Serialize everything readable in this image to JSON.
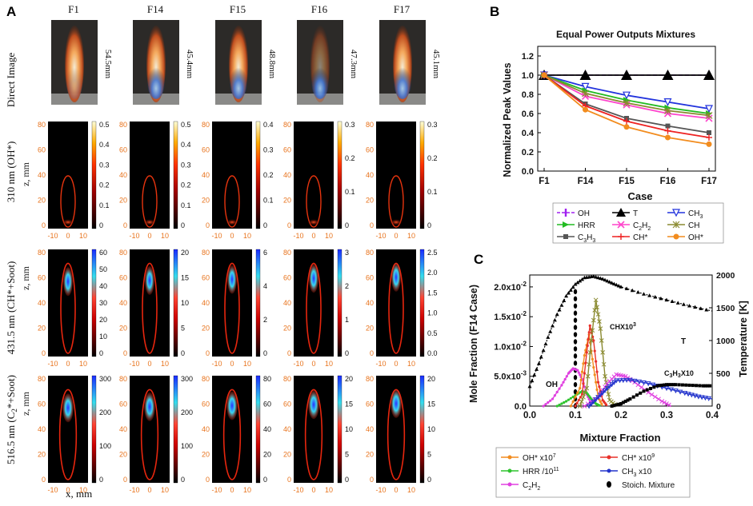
{
  "panelA": {
    "letter": "A",
    "columns": [
      {
        "label": "F1",
        "height": "54.5mm",
        "oh_ticks": [
          "0.5",
          "0.4",
          "0.3",
          "0.2",
          "0.1",
          "0"
        ],
        "ch_ticks": [
          "60",
          "50",
          "40",
          "30",
          "20",
          "10",
          "0"
        ],
        "c2_ticks": [
          "300",
          "200",
          "100",
          "0"
        ]
      },
      {
        "label": "F14",
        "height": "45.4mm",
        "oh_ticks": [
          "0.5",
          "0.4",
          "0.3",
          "0.2",
          "0.1",
          "0"
        ],
        "ch_ticks": [
          "20",
          "15",
          "10",
          "5",
          "0"
        ],
        "c2_ticks": [
          "300",
          "200",
          "100",
          "0"
        ]
      },
      {
        "label": "F15",
        "height": "48.8mm",
        "oh_ticks": [
          "0.4",
          "0.3",
          "0.2",
          "0.1",
          "0"
        ],
        "ch_ticks": [
          "6",
          "4",
          "2",
          "0"
        ],
        "c2_ticks": [
          "80",
          "60",
          "40",
          "20",
          "0"
        ]
      },
      {
        "label": "F16",
        "height": "47.3mm",
        "oh_ticks": [
          "0.3",
          "0.2",
          "0.1",
          "0"
        ],
        "ch_ticks": [
          "3",
          "2",
          "1",
          "0"
        ],
        "c2_ticks": [
          "20",
          "15",
          "10",
          "5",
          "0"
        ]
      },
      {
        "label": "F17",
        "height": "45.1mm",
        "oh_ticks": [
          "0.3",
          "0.2",
          "0.1",
          "0"
        ],
        "ch_ticks": [
          "2.5",
          "2.0",
          "1.5",
          "1.0",
          "0.5",
          "0.0"
        ],
        "c2_ticks": [
          "20",
          "15",
          "10",
          "5",
          "0"
        ]
      }
    ],
    "row_labels": [
      "Direct Image",
      "310 nm (OH*)",
      "431.5 nm (CH*+Soot)",
      "516.5 nm (C",
      "*+Soot)"
    ],
    "row_label_sub": "2",
    "z_label": "z, mm",
    "z_ticks": [
      "80",
      "60",
      "40",
      "20",
      "0"
    ],
    "x_ticks": [
      "-10",
      "0",
      "10"
    ],
    "x_label": "x, mm"
  },
  "panelB": {
    "letter": "B",
    "title": "Equal Power Outputs Mixtures",
    "ylabel": "Normalized Peak Values",
    "xlabel": "Case",
    "legend": [
      "OH",
      "T",
      "CH3",
      "HRR",
      "C2H2",
      "CH",
      "C3H3",
      "CH*",
      "OH*"
    ]
  },
  "panelC": {
    "letter": "C",
    "ylabel": "Mole Fraction (F14 Case)",
    "ylabel2": "Temperature [K]",
    "xlabel": "Mixture Fraction",
    "annotations": {
      "T": "T",
      "chx": "CHX10",
      "chx_exp": "3",
      "oh": "OH",
      "c3h3_a": "C",
      "c3h3_b": "3",
      "c3h3_c": "H",
      "c3h3_d": "3",
      "c3h3_e": "X10"
    },
    "legend": [
      {
        "key": "ohstar",
        "label": "OH* x10",
        "exp": "7",
        "color": "#f28c1e"
      },
      {
        "key": "chstar",
        "label": "CH* x10",
        "exp": "9",
        "color": "#e8322a"
      },
      {
        "key": "hrr",
        "label": "HRR /10",
        "exp": "11",
        "color": "#2fc42f"
      },
      {
        "key": "ch3",
        "label": "CH",
        "sub": "3",
        "tail": " x10",
        "color": "#2233cc"
      },
      {
        "key": "c2h2",
        "label": "C",
        "sub": "2",
        "mid": "H",
        "sub2": "2",
        "color": "#e040e0"
      },
      {
        "key": "stoich",
        "label": "Stoich. Mixture",
        "color": "#000000"
      }
    ]
  },
  "chart_data": [
    {
      "type": "line",
      "title": "Equal Power Outputs Mixtures",
      "xlabel": "Case",
      "ylabel": "Normalized Peak Values",
      "categories": [
        "F1",
        "F14",
        "F15",
        "F16",
        "F17"
      ],
      "yticks": [
        "0.0",
        "0.2",
        "0.4",
        "0.6",
        "0.8",
        "1.0",
        "1.2"
      ],
      "ylim": [
        0,
        1.3
      ],
      "series": [
        {
          "name": "OH",
          "color": "#a020f0",
          "values": [
            1.0,
            1.0,
            1.0,
            1.0,
            1.0
          ]
        },
        {
          "name": "T",
          "color": "#000000",
          "values": [
            1.0,
            1.0,
            1.0,
            1.0,
            1.0
          ]
        },
        {
          "name": "CH3",
          "color": "#2233dd",
          "values": [
            1.0,
            0.88,
            0.79,
            0.72,
            0.65
          ]
        },
        {
          "name": "HRR",
          "color": "#22bb22",
          "values": [
            1.0,
            0.84,
            0.74,
            0.66,
            0.6
          ]
        },
        {
          "name": "C2H2",
          "color": "#ff44cc",
          "values": [
            1.0,
            0.78,
            0.69,
            0.6,
            0.55
          ]
        },
        {
          "name": "CH",
          "color": "#8a8a30",
          "values": [
            1.0,
            0.81,
            0.71,
            0.63,
            0.58
          ]
        },
        {
          "name": "C3H3",
          "color": "#555555",
          "values": [
            1.0,
            0.7,
            0.55,
            0.47,
            0.4
          ]
        },
        {
          "name": "CH*",
          "color": "#ee2222",
          "values": [
            1.0,
            0.68,
            0.52,
            0.42,
            0.35
          ]
        },
        {
          "name": "OH*",
          "color": "#f28c1e",
          "values": [
            1.0,
            0.64,
            0.46,
            0.35,
            0.28
          ]
        }
      ]
    },
    {
      "type": "line",
      "xlabel": "Mixture Fraction",
      "ylabel": "Mole Fraction (F14 Case)",
      "y2label": "Temperature [K]",
      "xlim": [
        0,
        0.4
      ],
      "ylim": [
        0,
        0.022
      ],
      "y2lim": [
        0,
        2000
      ],
      "xticks": [
        "0.0",
        "0.1",
        "0.2",
        "0.3",
        "0.4"
      ],
      "yticks": [
        "0.0",
        "5.0x10-3",
        "1.0x10-2",
        "1.5x10-2",
        "2.0x10-2"
      ],
      "y2ticks": [
        "0",
        "500",
        "1000",
        "1500",
        "2000"
      ],
      "stoich_x": 0.1,
      "series": [
        {
          "name": "T",
          "axis": "right",
          "color": "#000000",
          "x": [
            0,
            0.02,
            0.04,
            0.06,
            0.08,
            0.1,
            0.12,
            0.14,
            0.16,
            0.18,
            0.2,
            0.25,
            0.3,
            0.35,
            0.4
          ],
          "values": [
            300,
            650,
            1050,
            1400,
            1680,
            1860,
            1960,
            1980,
            1940,
            1880,
            1820,
            1710,
            1620,
            1530,
            1450
          ]
        },
        {
          "name": "OH",
          "color": "#e040e0",
          "x": [
            0.03,
            0.05,
            0.07,
            0.085,
            0.095,
            0.105,
            0.115,
            0.125,
            0.135
          ],
          "values": [
            0.0,
            0.0012,
            0.0035,
            0.0055,
            0.0063,
            0.006,
            0.0045,
            0.002,
            0.0003
          ]
        },
        {
          "name": "HRR",
          "color": "#2fc42f",
          "x": [
            0.06,
            0.08,
            0.1,
            0.115,
            0.125,
            0.135,
            0.145,
            0.155
          ],
          "values": [
            0.0,
            0.0008,
            0.0018,
            0.0025,
            0.0022,
            0.0012,
            0.0004,
            0.0
          ]
        },
        {
          "name": "OH*",
          "color": "#f28c1e",
          "x": [
            0.09,
            0.11,
            0.12,
            0.13,
            0.14,
            0.15,
            0.16
          ],
          "values": [
            0.0,
            0.003,
            0.0085,
            0.012,
            0.0065,
            0.0015,
            0.0
          ]
        },
        {
          "name": "CH*",
          "color": "#e8322a",
          "x": [
            0.1,
            0.115,
            0.125,
            0.132,
            0.14,
            0.15,
            0.16,
            0.17
          ],
          "values": [
            0.0,
            0.002,
            0.009,
            0.0135,
            0.011,
            0.004,
            0.001,
            0.0
          ]
        },
        {
          "name": "CHX10^3",
          "color": "#8a8a30",
          "x": [
            0.11,
            0.125,
            0.135,
            0.145,
            0.155,
            0.165,
            0.175,
            0.19
          ],
          "values": [
            0.0,
            0.003,
            0.011,
            0.0178,
            0.013,
            0.005,
            0.001,
            0.0
          ]
        },
        {
          "name": "C2H2",
          "color": "#e040e0",
          "x": [
            0.12,
            0.15,
            0.17,
            0.19,
            0.21,
            0.23,
            0.26,
            0.29,
            0.31
          ],
          "values": [
            0.0,
            0.0015,
            0.0038,
            0.0053,
            0.005,
            0.004,
            0.0023,
            0.0008,
            0.0
          ]
        },
        {
          "name": "CH3 x10",
          "color": "#2233cc",
          "x": [
            0.13,
            0.15,
            0.17,
            0.19,
            0.22,
            0.26,
            0.3,
            0.34,
            0.37,
            0.4
          ],
          "values": [
            0.0,
            0.0015,
            0.003,
            0.0043,
            0.0044,
            0.0038,
            0.003,
            0.0022,
            0.0016,
            0.0012
          ]
        },
        {
          "name": "C3H3X10",
          "color": "#000000",
          "x": [
            0.18,
            0.2,
            0.22,
            0.25,
            0.28,
            0.3,
            0.32,
            0.35,
            0.38,
            0.4
          ],
          "values": [
            0.0,
            0.0004,
            0.0012,
            0.0025,
            0.0034,
            0.0036,
            0.0036,
            0.0035,
            0.0034,
            0.0034
          ]
        }
      ]
    }
  ]
}
